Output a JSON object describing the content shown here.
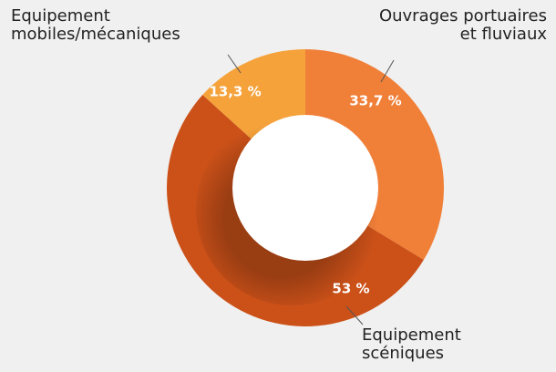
{
  "chart_data": {
    "type": "donut",
    "categories": [
      "Ouvrages portuaires\net fluviaux",
      "Equipement\nscéniques",
      "Equipement\nmobiles/mécaniques"
    ],
    "values": [
      33.7,
      53,
      13.3
    ],
    "value_labels": [
      "33,7 %",
      "53 %",
      "13,3 %"
    ],
    "colors": [
      "#f07f38",
      "#cc5119",
      "#f5a23b"
    ]
  }
}
